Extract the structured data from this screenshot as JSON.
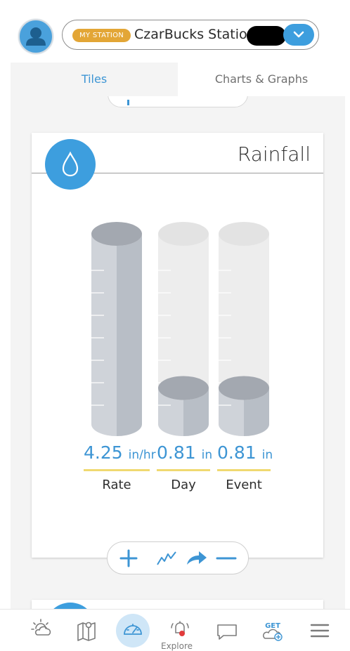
{
  "header": {
    "badge": "MY STATION",
    "station_name": "CzarBucks Station,"
  },
  "tabs": [
    {
      "label": "Tiles",
      "active": true
    },
    {
      "label": "Charts & Graphs",
      "active": false
    }
  ],
  "tile": {
    "title": "Rainfall",
    "icon": "water-drop-icon",
    "readouts": [
      {
        "value": "4.25",
        "unit": "in/hr",
        "label": "Rate",
        "fill_fraction": 1.0
      },
      {
        "value": "0.81",
        "unit": "in",
        "label": "Day",
        "fill_fraction": 0.19
      },
      {
        "value": "0.81",
        "unit": "in",
        "label": "Event",
        "fill_fraction": 0.19
      }
    ],
    "toolbar": [
      "plus-icon",
      "trend-line-icon",
      "share-arrow-icon",
      "minus-icon"
    ]
  },
  "bottom_nav": {
    "items": [
      "weather-sun-icon",
      "map-icon",
      "dashboard-gauge-icon",
      "explore-bell-icon",
      "chat-icon",
      "get-cloud-icon",
      "menu-icon"
    ],
    "explore_label": "Explore",
    "get_label": "GET"
  },
  "colors": {
    "accent_blue": "#3d9ede",
    "badge_gold": "#e3a636",
    "underline_yellow": "#f0d971"
  }
}
